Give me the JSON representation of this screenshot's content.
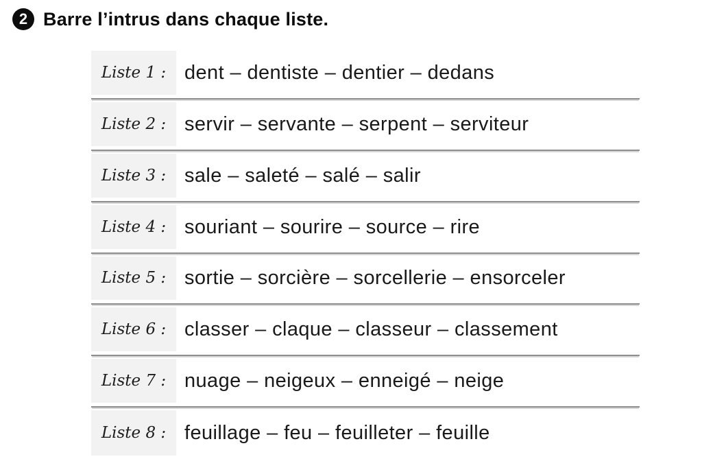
{
  "exercise": {
    "number": "2",
    "instruction": "Barre l’intrus dans chaque liste."
  },
  "table": {
    "rows": [
      {
        "label": "Liste 1 :",
        "words": "dent – dentiste – dentier – dedans"
      },
      {
        "label": "Liste 2 :",
        "words": "servir – servante – serpent – serviteur"
      },
      {
        "label": "Liste 3 :",
        "words": "sale – saleté – salé – salir"
      },
      {
        "label": "Liste 4 :",
        "words": "souriant – sourire – source – rire"
      },
      {
        "label": "Liste 5 :",
        "words": "sortie – sorcière – sorcellerie – ensorceler"
      },
      {
        "label": "Liste 6 :",
        "words": "classer – claque – classeur – classement"
      },
      {
        "label": "Liste 7 :",
        "words": "nuage – neigeux – enneigé – neige"
      },
      {
        "label": "Liste 8 :",
        "words": "feuillage – feu – feuilleter – feuille"
      }
    ]
  },
  "colors": {
    "badge_bg": "#0d0d0d",
    "label_cell_bg": "#f2f2f2",
    "separator": "#8e8e8e",
    "text": "#191919"
  }
}
